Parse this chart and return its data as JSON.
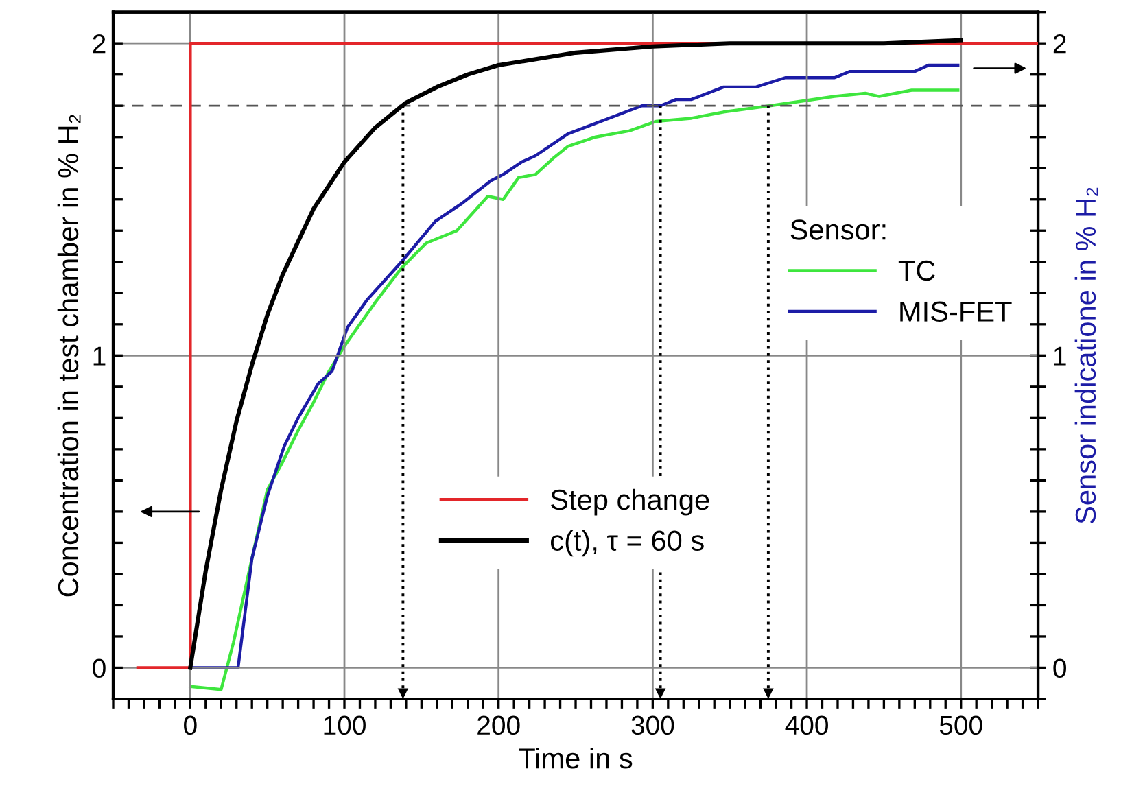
{
  "chart_data": {
    "type": "line",
    "xlabel": "Time in s",
    "ylabel": "Concentration in test chamber in % H₂",
    "y2label": "Sensor indicatione in % H₂",
    "legend_title": "Sensor:",
    "legend": "center right",
    "grid": true,
    "line_style": "solid",
    "marker": "none",
    "xlim": [
      -50,
      550
    ],
    "ylim": [
      -0.1,
      2.1
    ],
    "y2lim": [
      -0.1,
      2.1
    ],
    "xticks": [
      {
        "value": -50,
        "label": null
      },
      {
        "value": -40,
        "label": null
      },
      {
        "value": -30,
        "label": null
      },
      {
        "value": -20,
        "label": null
      },
      {
        "value": -10,
        "label": null
      },
      0,
      {
        "value": 10,
        "label": null
      },
      {
        "value": 20,
        "label": null
      },
      {
        "value": 30,
        "label": null
      },
      {
        "value": 40,
        "label": null
      },
      {
        "value": 50,
        "label": null
      },
      {
        "value": 60,
        "label": null
      },
      {
        "value": 70,
        "label": null
      },
      {
        "value": 80,
        "label": null
      },
      {
        "value": 90,
        "label": null
      },
      100,
      {
        "value": 110,
        "label": null
      },
      {
        "value": 120,
        "label": null
      },
      {
        "value": 130,
        "label": null
      },
      {
        "value": 140,
        "label": null
      },
      {
        "value": 150,
        "label": null
      },
      {
        "value": 160,
        "label": null
      },
      {
        "value": 170,
        "label": null
      },
      {
        "value": 180,
        "label": null
      },
      {
        "value": 190,
        "label": null
      },
      200,
      {
        "value": 210,
        "label": null
      },
      {
        "value": 220,
        "label": null
      },
      {
        "value": 230,
        "label": null
      },
      {
        "value": 240,
        "label": null
      },
      {
        "value": 250,
        "label": null
      },
      {
        "value": 260,
        "label": null
      },
      {
        "value": 270,
        "label": null
      },
      {
        "value": 280,
        "label": null
      },
      {
        "value": 290,
        "label": null
      },
      300,
      {
        "value": 310,
        "label": null
      },
      {
        "value": 320,
        "label": null
      },
      {
        "value": 330,
        "label": null
      },
      {
        "value": 340,
        "label": null
      },
      {
        "value": 350,
        "label": null
      },
      {
        "value": 360,
        "label": null
      },
      {
        "value": 370,
        "label": null
      },
      {
        "value": 380,
        "label": null
      },
      {
        "value": 390,
        "label": null
      },
      400,
      {
        "value": 410,
        "label": null
      },
      {
        "value": 420,
        "label": null
      },
      {
        "value": 430,
        "label": null
      },
      {
        "value": 440,
        "label": null
      },
      {
        "value": 450,
        "label": null
      },
      {
        "value": 460,
        "label": null
      },
      {
        "value": 470,
        "label": null
      },
      {
        "value": 480,
        "label": null
      },
      {
        "value": 490,
        "label": null
      },
      500,
      {
        "value": 510,
        "label": null
      },
      {
        "value": 520,
        "label": null
      },
      {
        "value": 530,
        "label": null
      },
      {
        "value": 540,
        "label": null
      },
      {
        "value": 550,
        "label": null
      }
    ],
    "yticks": [
      {
        "value": -0.1,
        "label": null
      },
      0,
      {
        "value": 0.1,
        "label": null
      },
      {
        "value": 0.2,
        "label": null
      },
      {
        "value": 0.3,
        "label": null
      },
      {
        "value": 0.4,
        "label": null
      },
      {
        "value": 0.5,
        "label": null
      },
      {
        "value": 0.6,
        "label": null
      },
      {
        "value": 0.7,
        "label": null
      },
      {
        "value": 0.8,
        "label": null
      },
      {
        "value": 0.9,
        "label": null
      },
      1,
      {
        "value": 1.1,
        "label": null
      },
      {
        "value": 1.2,
        "label": null
      },
      {
        "value": 1.3,
        "label": null
      },
      {
        "value": 1.4,
        "label": null
      },
      {
        "value": 1.5,
        "label": null
      },
      {
        "value": 1.6,
        "label": null
      },
      {
        "value": 1.7,
        "label": null
      },
      {
        "value": 1.8,
        "label": null
      },
      {
        "value": 1.9,
        "label": null
      },
      2,
      {
        "value": 2.1,
        "label": null
      }
    ],
    "y2ticks": [
      {
        "value": -0.1,
        "label": null
      },
      0,
      {
        "value": 0.1,
        "label": null
      },
      {
        "value": 0.2,
        "label": null
      },
      {
        "value": 0.3,
        "label": null
      },
      {
        "value": 0.4,
        "label": null
      },
      {
        "value": 0.5,
        "label": null
      },
      {
        "value": 0.6,
        "label": null
      },
      {
        "value": 0.7,
        "label": null
      },
      {
        "value": 0.8,
        "label": null
      },
      {
        "value": 0.9,
        "label": null
      },
      1,
      {
        "value": 1.1,
        "label": null
      },
      {
        "value": 1.2,
        "label": null
      },
      {
        "value": 1.3,
        "label": null
      },
      {
        "value": 1.4,
        "label": null
      },
      {
        "value": 1.5,
        "label": null
      },
      {
        "value": 1.6,
        "label": null
      },
      {
        "value": 1.7,
        "label": null
      },
      {
        "value": 1.8,
        "label": null
      },
      {
        "value": 1.9,
        "label": null
      },
      2,
      {
        "value": 2.1,
        "label": null
      }
    ],
    "series": [
      {
        "name": "Step change",
        "color": "#e3262a",
        "x": [
          -34,
          0,
          0,
          550
        ],
        "values": [
          0,
          0,
          2,
          2
        ]
      },
      {
        "name": "c(t), τ = 60 s",
        "color": "#000000",
        "x": [
          0,
          10,
          20,
          30,
          40,
          50,
          60,
          80,
          100,
          120,
          140,
          160,
          180,
          200,
          250,
          300,
          350,
          400,
          450,
          500
        ],
        "values": [
          0,
          0.31,
          0.57,
          0.79,
          0.97,
          1.13,
          1.26,
          1.47,
          1.62,
          1.73,
          1.81,
          1.86,
          1.9,
          1.93,
          1.97,
          1.99,
          2.0,
          2.0,
          2.0,
          2.01
        ]
      },
      {
        "name": "TC",
        "color": "#3ee63e",
        "axis": "y2",
        "x": [
          0,
          20,
          28,
          40,
          50,
          60,
          70,
          80,
          90,
          100,
          110,
          120,
          137,
          153,
          173,
          193,
          203,
          213,
          224,
          235,
          245,
          263,
          285,
          302,
          325,
          346,
          376,
          418,
          438,
          447,
          468,
          498
        ],
        "values": [
          -0.06,
          -0.07,
          0.08,
          0.35,
          0.57,
          0.66,
          0.76,
          0.85,
          0.95,
          1.03,
          1.1,
          1.17,
          1.28,
          1.36,
          1.4,
          1.51,
          1.5,
          1.57,
          1.58,
          1.63,
          1.67,
          1.7,
          1.72,
          1.75,
          1.76,
          1.78,
          1.8,
          1.83,
          1.84,
          1.83,
          1.85,
          1.85
        ]
      },
      {
        "name": "MIS-FET",
        "color": "#1c1ca6",
        "axis": "y2",
        "x": [
          0,
          31,
          40,
          50,
          61,
          70,
          83,
          92,
          102,
          115,
          137,
          159,
          177,
          195,
          203,
          215,
          224,
          245,
          293,
          305,
          315,
          325,
          346,
          367,
          386,
          418,
          428,
          470,
          479,
          498
        ],
        "values": [
          0,
          0,
          0.35,
          0.55,
          0.71,
          0.8,
          0.91,
          0.95,
          1.09,
          1.18,
          1.3,
          1.43,
          1.49,
          1.56,
          1.58,
          1.62,
          1.64,
          1.71,
          1.8,
          1.8,
          1.82,
          1.82,
          1.86,
          1.86,
          1.89,
          1.89,
          1.91,
          1.91,
          1.93,
          1.93
        ]
      }
    ],
    "ref_lines": [
      {
        "axis": "y",
        "value": 1.8,
        "color": "#555555",
        "line_style": "dashed"
      },
      {
        "axis": "x",
        "value": 138,
        "color": "#000000",
        "line_style": "dotted"
      },
      {
        "axis": "x",
        "value": 305,
        "color": "#000000",
        "line_style": "dotted"
      },
      {
        "axis": "x",
        "value": 375,
        "color": "#000000",
        "line_style": "dotted"
      }
    ]
  }
}
